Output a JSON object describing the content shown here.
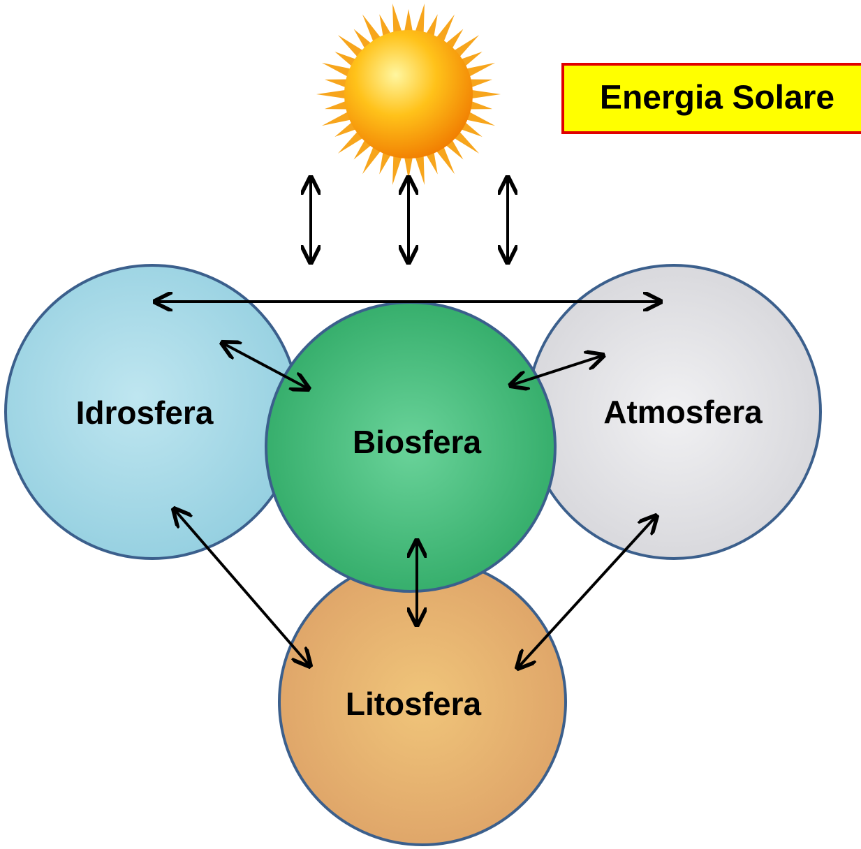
{
  "energy_label": "Energia Solare",
  "nodes": [
    {
      "label": "Idrosfera"
    },
    {
      "label": "Biosfera"
    },
    {
      "label": "Atmosfera"
    },
    {
      "label": "Litosfera"
    }
  ]
}
